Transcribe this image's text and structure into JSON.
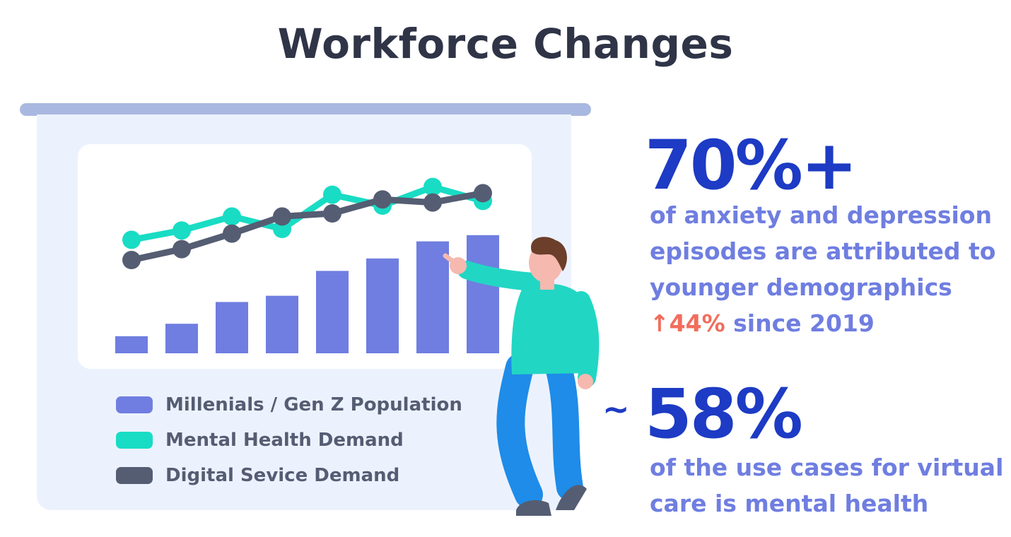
{
  "title": "Workforce Changes",
  "colors": {
    "bars": "#6f7ee0",
    "mental_health": "#19dcc4",
    "digital": "#555d73",
    "stat": "#1d3bc4",
    "text": "#6f7ee0",
    "growth": "#f26d5b"
  },
  "chart_data": {
    "type": "bar",
    "categories": [
      "",
      "",
      "",
      "",
      "",
      "",
      "",
      ""
    ],
    "ylim": [
      0,
      100
    ],
    "grid": false,
    "legend_placement": "bottom",
    "series": [
      {
        "name": "Millenials / Gen Z Population",
        "type": "bar",
        "values": [
          11,
          19,
          33,
          37,
          53,
          61,
          72,
          76
        ]
      },
      {
        "name": "Mental Health Demand",
        "type": "line",
        "values": [
          73,
          79,
          88,
          80,
          102,
          95,
          107,
          98
        ]
      },
      {
        "name": "Digital Sevice Demand",
        "type": "line",
        "values": [
          60,
          67,
          77,
          88,
          90,
          99,
          97,
          103
        ]
      }
    ]
  },
  "stats": [
    {
      "value": "70%+",
      "lines": [
        "of anxiety and depression",
        "episodes are attributed to",
        "younger demographics"
      ],
      "growth": "↑44%",
      "growth_suffix": "since 2019"
    },
    {
      "approx": "~",
      "value": "58%",
      "lines": [
        "of the use cases for virtual",
        "care is mental health"
      ]
    }
  ]
}
